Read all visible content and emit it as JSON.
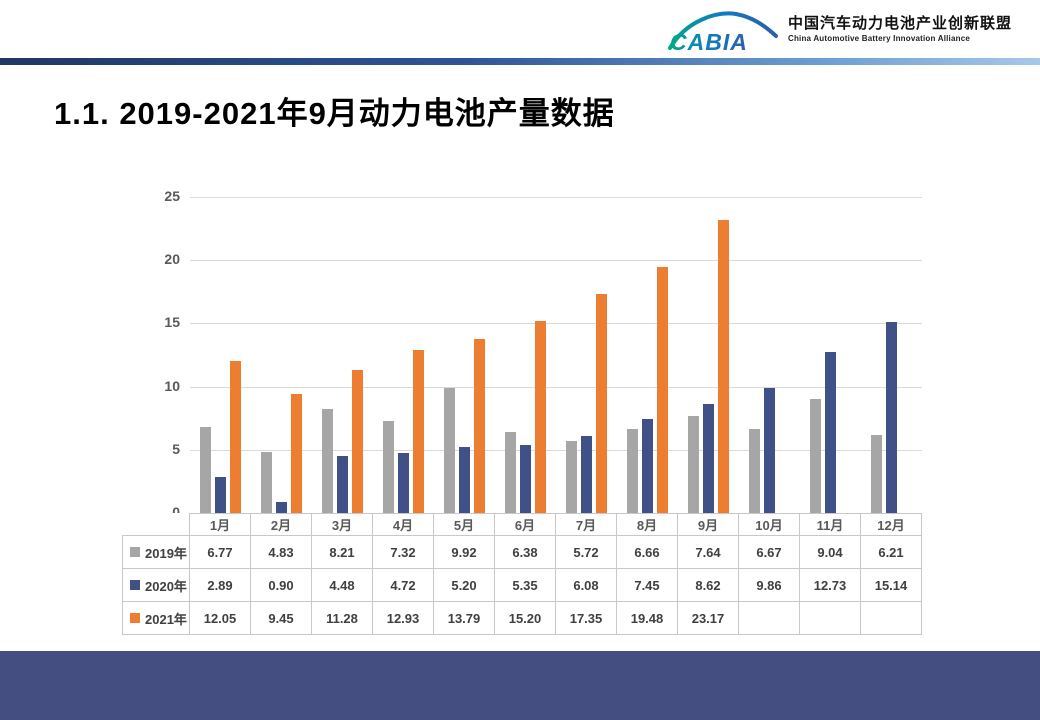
{
  "header": {
    "logo_text": "CABIA",
    "org_name_cn": "中国汽车动力电池产业创新联盟",
    "org_name_en": "China Automotive Battery Innovation Alliance"
  },
  "title": "1.1. 2019-2021年9月动力电池产量数据",
  "chart_data": {
    "type": "bar",
    "title": "2019-2021年9月动力电池产量数据",
    "xlabel": "",
    "ylabel": "",
    "categories": [
      "1月",
      "2月",
      "3月",
      "4月",
      "5月",
      "6月",
      "7月",
      "8月",
      "9月",
      "10月",
      "11月",
      "12月"
    ],
    "series": [
      {
        "name": "2019年",
        "color": "#A6A6A6",
        "values": [
          6.77,
          4.83,
          8.21,
          7.32,
          9.92,
          6.38,
          5.72,
          6.66,
          7.64,
          6.67,
          9.04,
          6.21
        ],
        "labels": [
          "6.77",
          "4.83",
          "8.21",
          "7.32",
          "9.92",
          "6.38",
          "5.72",
          "6.66",
          "7.64",
          "6.67",
          "9.04",
          "6.21"
        ]
      },
      {
        "name": "2020年",
        "color": "#3F5186",
        "values": [
          2.89,
          0.9,
          4.48,
          4.72,
          5.2,
          5.35,
          6.08,
          7.45,
          8.62,
          9.86,
          12.73,
          15.14
        ],
        "labels": [
          "2.89",
          "0.90",
          "4.48",
          "4.72",
          "5.20",
          "5.35",
          "6.08",
          "7.45",
          "8.62",
          "9.86",
          "12.73",
          "15.14"
        ]
      },
      {
        "name": "2021年",
        "color": "#ED7D31",
        "values": [
          12.05,
          9.45,
          11.28,
          12.93,
          13.79,
          15.2,
          17.35,
          19.48,
          23.17,
          null,
          null,
          null
        ],
        "labels": [
          "12.05",
          "9.45",
          "11.28",
          "12.93",
          "13.79",
          "15.20",
          "17.35",
          "19.48",
          "23.17",
          "",
          "",
          ""
        ]
      }
    ],
    "ylim": [
      0,
      25
    ],
    "yticks": [
      0,
      5,
      10,
      15,
      20,
      25
    ],
    "grid": true,
    "legend_position": "table-rows-left",
    "data_table": true
  },
  "colors": {
    "divider_left": "#1F3864",
    "divider_right": "#A8C8E8",
    "bottom_band": "#444E81",
    "gridline": "#D9D9D9",
    "table_border": "#C8C8C8",
    "axis_text": "#595959",
    "table_text": "#404040",
    "logo_teal": "#00A886",
    "logo_blue": "#2C5FA8"
  }
}
